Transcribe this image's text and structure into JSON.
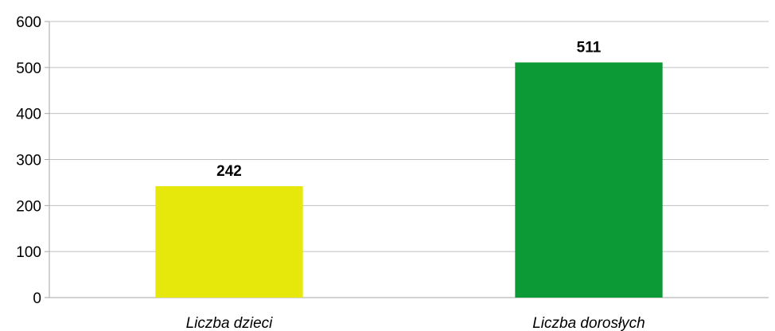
{
  "chart_data": {
    "type": "bar",
    "categories": [
      "Liczba dzieci",
      "Liczba dorosłych"
    ],
    "values": [
      242,
      511
    ],
    "data_labels": [
      "242",
      "511"
    ],
    "colors": [
      "#e5e80a",
      "#0b9a35"
    ],
    "ylim": [
      0,
      600
    ],
    "yticks": [
      "0",
      "100",
      "200",
      "300",
      "400",
      "500",
      "600"
    ],
    "ytick_values": [
      0,
      100,
      200,
      300,
      400,
      500,
      600
    ],
    "grid": true,
    "legend": "none",
    "title": "",
    "xlabel": "",
    "ylabel": "",
    "gridline_color": "#c0c0c0",
    "axis_color": "#a6a6a6"
  }
}
